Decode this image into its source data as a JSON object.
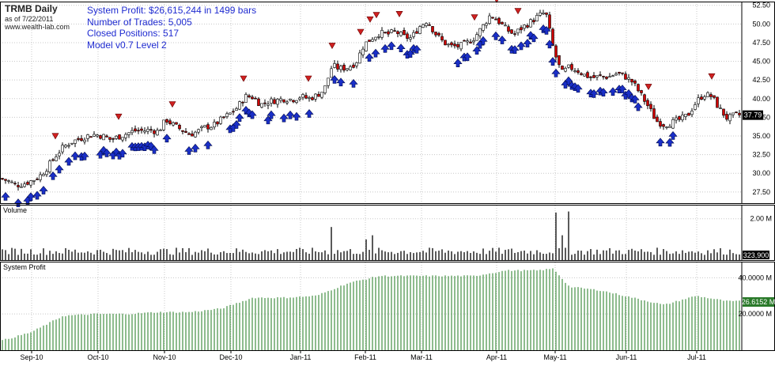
{
  "header": {
    "symbol_title": "TRMB Daily",
    "as_of": "as of 7/22/2011",
    "website": "www.wealth-lab.com",
    "stats": [
      "System Profit: $26,615,244 in 1499 bars",
      "Number of Trades:  5,005",
      "Closed Positions:  517",
      "Model v0.7  Level 2"
    ]
  },
  "colors": {
    "up_candle": "#ffffff",
    "down_candle": "#d00000",
    "buy_arrow": "#1a2fc8",
    "sell_triangle": "#d02020",
    "volume_bar": "#000000",
    "profit_bar": "#1d7a1d",
    "last_price_box": "#000000",
    "profit_box": "#2a7a2a",
    "grid": "#c8c8c8"
  },
  "chart_data": [
    {
      "type": "candlestick",
      "title": "TRMB Daily",
      "y_ticks": [
        "27.50",
        "30.00",
        "32.50",
        "35.00",
        "37.50",
        "40.00",
        "42.50",
        "45.00",
        "47.50",
        "50.00",
        "52.50"
      ],
      "ylim": [
        26.0,
        53.0
      ],
      "last_price_label": "37.79",
      "x_ticks": [
        "Sep-10",
        "Oct-10",
        "Nov-10",
        "Dec-10",
        "Jan-11",
        "Feb-11",
        "Mar-11",
        "Apr-11",
        "May-11",
        "Jun-11",
        "Jul-11"
      ],
      "close_path": {
        "x": [
          0,
          10,
          20,
          30,
          40,
          50,
          60,
          70,
          80,
          90,
          100,
          110,
          120,
          130,
          140,
          150,
          160,
          170,
          180,
          190,
          200,
          210,
          220,
          230,
          240,
          250,
          260,
          270,
          280,
          290,
          300,
          310,
          320,
          330,
          340,
          350,
          360,
          370,
          380,
          390,
          400,
          410,
          420,
          430,
          440,
          450,
          460,
          470,
          480,
          490,
          500,
          510,
          520,
          530,
          540,
          550,
          560,
          570,
          580,
          590,
          600,
          610,
          620,
          630,
          640,
          650,
          660,
          670,
          680,
          690,
          700,
          710,
          720,
          730,
          740,
          750,
          760,
          770,
          780,
          790,
          800,
          810,
          820,
          830,
          840,
          850,
          860,
          870,
          880,
          890,
          900,
          910,
          920,
          930
        ],
        "y": [
          29.3,
          29.0,
          28.4,
          28.6,
          29.0,
          29.6,
          30.8,
          32.3,
          33.5,
          34.2,
          34.6,
          35.0,
          35.2,
          35.0,
          34.5,
          34.9,
          35.3,
          35.7,
          35.7,
          35.8,
          35.6,
          37.2,
          36.4,
          35.8,
          35.2,
          35.6,
          36.2,
          36.4,
          37.2,
          37.9,
          38.8,
          40.3,
          40.2,
          39.2,
          39.6,
          39.8,
          40.0,
          39.9,
          40.3,
          40.0,
          40.4,
          41.2,
          44.4,
          44.0,
          44.2,
          44.8,
          47.2,
          48.1,
          48.8,
          48.6,
          49.0,
          48.3,
          48.1,
          49.6,
          50.5,
          48.8,
          47.6,
          47.0,
          47.0,
          47.4,
          48.2,
          49.6,
          51.2,
          50.4,
          49.3,
          48.6,
          49.5,
          50.2,
          51.0,
          51.6,
          46.5,
          43.4,
          44.2,
          43.8,
          43.1,
          42.8,
          43.0,
          42.9,
          43.4,
          43.0,
          42.2,
          40.6,
          38.9,
          37.0,
          36.5,
          36.8,
          37.2,
          37.8,
          39.5,
          40.6,
          40.3,
          38.6,
          37.3,
          37.8
        ],
        "domain_x": [
          0,
          937
        ]
      },
      "buy_signals_count": 95,
      "sell_signals_count": 16
    },
    {
      "type": "bar",
      "title": "Volume",
      "y_ticks": [
        "2.00 M"
      ],
      "last_value_label": "323,900",
      "spikes": [
        {
          "x": 419,
          "value": 1.6
        },
        {
          "x": 464,
          "value": 1.0
        },
        {
          "x": 472,
          "value": 1.2
        },
        {
          "x": 703,
          "value": 2.3
        },
        {
          "x": 719,
          "value": 2.35
        },
        {
          "x": 711,
          "value": 1.2
        }
      ]
    },
    {
      "type": "bar",
      "title": "System Profit",
      "y_ticks": [
        "20.0000 M",
        "40.0000 M"
      ],
      "last_value_label": "26.6152 M",
      "ylim": [
        0,
        48
      ],
      "path": {
        "x": [
          0,
          40,
          80,
          120,
          160,
          200,
          240,
          280,
          320,
          360,
          400,
          440,
          480,
          520,
          560,
          600,
          640,
          680,
          700,
          720,
          760,
          800,
          840,
          880,
          920,
          937
        ],
        "y": [
          5,
          10,
          19,
          20,
          20,
          21,
          21,
          23,
          29,
          29,
          30,
          37,
          41,
          41,
          41,
          41,
          44,
          44,
          45,
          35,
          33,
          29,
          25,
          30,
          27,
          27
        ]
      }
    }
  ]
}
